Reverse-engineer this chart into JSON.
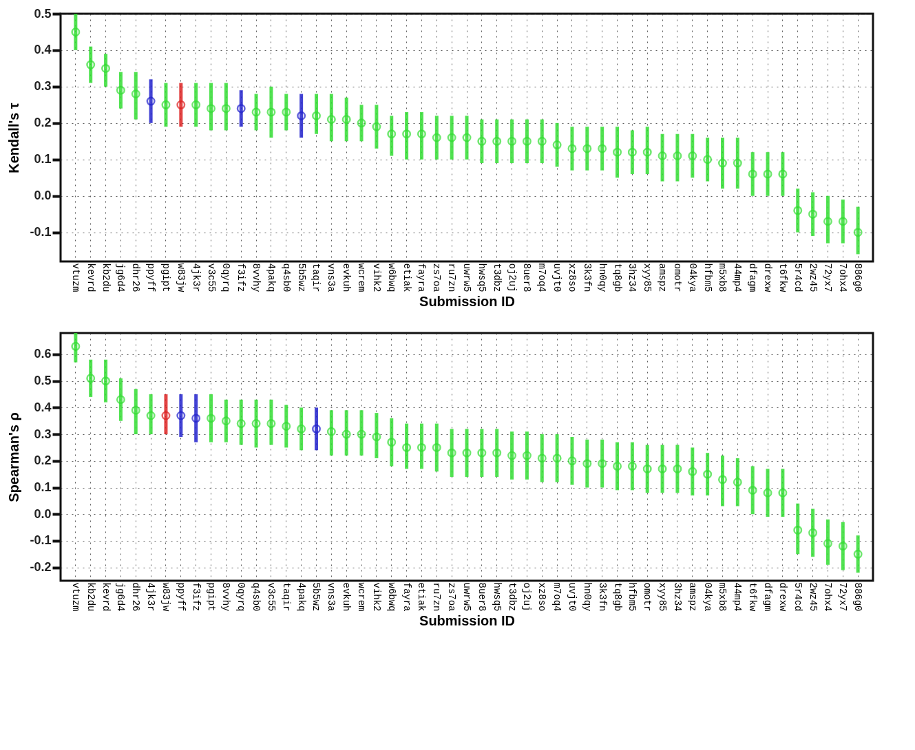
{
  "chart_data": [
    {
      "type": "scatter",
      "xlabel": "Submission ID",
      "ylabel": "Kendall's τ",
      "marker": "circle",
      "grid": true,
      "categories": [
        "vtuzm",
        "kevrd",
        "kb2du",
        "jg6d4",
        "dhr26",
        "ppyff",
        "pgipt",
        "w83jw",
        "4jk3r",
        "v3c55",
        "0qyrq",
        "f3ifz",
        "8vvhy",
        "4pakq",
        "q4sb0",
        "5b5wz",
        "taqir",
        "vns3a",
        "evkuh",
        "wcrem",
        "vihk2",
        "w6bwq",
        "etiak",
        "fayra",
        "zs7oa",
        "ru7zn",
        "uwrw5",
        "hwsq5",
        "t3dbz",
        "oj2uj",
        "8uer8",
        "m7oq4",
        "uvjt0",
        "xz8so",
        "3k3fn",
        "hn0qy",
        "tq8gb",
        "3hz34",
        "xyy85",
        "amspz",
        "omotr",
        "04kya",
        "hfbm5",
        "m5xb8",
        "44mp4",
        "dfagm",
        "drexw",
        "t6fkw",
        "5r4cd",
        "2wz45",
        "72yx7",
        "7ohx4",
        "886g0"
      ],
      "ylim": [
        -0.18,
        0.5
      ],
      "yticks": [
        -0.1,
        {
          "value": 0,
          "label": "0.0"
        },
        0.1,
        0.2,
        0.3,
        0.4,
        0.5
      ],
      "series": [
        {
          "values": [
            0.45,
            0.36,
            0.35,
            0.29,
            0.28,
            0.26,
            0.25,
            0.25,
            0.25,
            0.24,
            0.24,
            0.24,
            0.23,
            0.23,
            0.23,
            0.22,
            0.22,
            0.21,
            0.21,
            0.2,
            0.19,
            0.17,
            0.17,
            0.17,
            0.16,
            0.16,
            0.16,
            0.15,
            0.15,
            0.15,
            0.15,
            0.15,
            0.14,
            0.13,
            0.13,
            0.13,
            0.12,
            0.12,
            0.12,
            0.11,
            0.11,
            0.11,
            0.1,
            0.09,
            0.09,
            0.06,
            0.06,
            0.06,
            -0.04,
            -0.05,
            -0.07,
            -0.07,
            -0.1
          ],
          "errors": [
            [
              0.4,
              0.5
            ],
            [
              0.31,
              0.41
            ],
            [
              0.3,
              0.39
            ],
            [
              0.24,
              0.34
            ],
            [
              0.21,
              0.34
            ],
            [
              0.2,
              0.32
            ],
            [
              0.19,
              0.31
            ],
            [
              0.19,
              0.31
            ],
            [
              0.19,
              0.31
            ],
            [
              0.18,
              0.31
            ],
            [
              0.18,
              0.31
            ],
            [
              0.19,
              0.29
            ],
            [
              0.18,
              0.28
            ],
            [
              0.16,
              0.3
            ],
            [
              0.18,
              0.28
            ],
            [
              0.16,
              0.28
            ],
            [
              0.17,
              0.28
            ],
            [
              0.15,
              0.28
            ],
            [
              0.15,
              0.27
            ],
            [
              0.15,
              0.25
            ],
            [
              0.13,
              0.25
            ],
            [
              0.11,
              0.22
            ],
            [
              0.1,
              0.23
            ],
            [
              0.1,
              0.23
            ],
            [
              0.1,
              0.22
            ],
            [
              0.1,
              0.22
            ],
            [
              0.1,
              0.22
            ],
            [
              0.09,
              0.21
            ],
            [
              0.09,
              0.21
            ],
            [
              0.09,
              0.21
            ],
            [
              0.09,
              0.21
            ],
            [
              0.09,
              0.21
            ],
            [
              0.08,
              0.2
            ],
            [
              0.07,
              0.19
            ],
            [
              0.07,
              0.19
            ],
            [
              0.07,
              0.19
            ],
            [
              0.05,
              0.19
            ],
            [
              0.06,
              0.18
            ],
            [
              0.06,
              0.19
            ],
            [
              0.04,
              0.17
            ],
            [
              0.04,
              0.17
            ],
            [
              0.05,
              0.17
            ],
            [
              0.04,
              0.16
            ],
            [
              0.02,
              0.16
            ],
            [
              0.02,
              0.16
            ],
            [
              0.0,
              0.12
            ],
            [
              0.0,
              0.12
            ],
            [
              0.0,
              0.12
            ],
            [
              -0.1,
              0.02
            ],
            [
              -0.11,
              0.01
            ],
            [
              -0.13,
              0.0
            ],
            [
              -0.13,
              -0.01
            ],
            [
              -0.16,
              -0.03
            ]
          ],
          "colors": [
            "#33dd33",
            "#33dd33",
            "#33dd33",
            "#33dd33",
            "#33dd33",
            "#2222cc",
            "#33dd33",
            "#dd2222",
            "#33dd33",
            "#33dd33",
            "#33dd33",
            "#2222cc",
            "#33dd33",
            "#33dd33",
            "#33dd33",
            "#2222cc",
            "#33dd33",
            "#33dd33",
            "#33dd33",
            "#33dd33",
            "#33dd33",
            "#33dd33",
            "#33dd33",
            "#33dd33",
            "#33dd33",
            "#33dd33",
            "#33dd33",
            "#33dd33",
            "#33dd33",
            "#33dd33",
            "#33dd33",
            "#33dd33",
            "#33dd33",
            "#33dd33",
            "#33dd33",
            "#33dd33",
            "#33dd33",
            "#33dd33",
            "#33dd33",
            "#33dd33",
            "#33dd33",
            "#33dd33",
            "#33dd33",
            "#33dd33",
            "#33dd33",
            "#33dd33",
            "#33dd33",
            "#33dd33",
            "#33dd33",
            "#33dd33",
            "#33dd33",
            "#33dd33",
            "#33dd33"
          ]
        }
      ]
    },
    {
      "type": "scatter",
      "xlabel": "Submission ID",
      "ylabel": "Spearman's ρ",
      "marker": "circle",
      "grid": true,
      "categories": [
        "vtuzm",
        "kb2du",
        "kevrd",
        "jg6d4",
        "dhr26",
        "4jk3r",
        "w83jw",
        "ppyff",
        "f3ifz",
        "pgipt",
        "8vvhy",
        "0qyrq",
        "q4sb0",
        "v3c55",
        "taqir",
        "4pakq",
        "5b5wz",
        "vns3a",
        "evkuh",
        "wcrem",
        "vihk2",
        "w6bwq",
        "fayra",
        "etiak",
        "ru7zn",
        "zs7oa",
        "uwrw5",
        "8uer8",
        "hwsq5",
        "t3dbz",
        "oj2uj",
        "xz8so",
        "m7oq4",
        "uvjt0",
        "hn0qy",
        "3k3fn",
        "tq8gb",
        "hfbm5",
        "omotr",
        "xyy85",
        "3hz34",
        "amspz",
        "04kya",
        "m5xb8",
        "44mp4",
        "t6fkw",
        "dfagm",
        "drexw",
        "5r4cd",
        "2wz45",
        "7ohx4",
        "72yx7",
        "886g0"
      ],
      "ylim": [
        -0.25,
        0.68
      ],
      "yticks": [
        -0.2,
        -0.1,
        {
          "value": 0,
          "label": "0.0"
        },
        0.1,
        0.2,
        0.3,
        0.4,
        0.5,
        0.6
      ],
      "series": [
        {
          "values": [
            0.63,
            0.51,
            0.5,
            0.43,
            0.39,
            0.37,
            0.37,
            0.37,
            0.36,
            0.36,
            0.35,
            0.34,
            0.34,
            0.34,
            0.33,
            0.32,
            0.32,
            0.31,
            0.3,
            0.3,
            0.29,
            0.27,
            0.25,
            0.25,
            0.25,
            0.23,
            0.23,
            0.23,
            0.23,
            0.22,
            0.22,
            0.21,
            0.21,
            0.2,
            0.19,
            0.19,
            0.18,
            0.18,
            0.17,
            0.17,
            0.17,
            0.16,
            0.15,
            0.13,
            0.12,
            0.09,
            0.08,
            0.08,
            -0.06,
            -0.07,
            -0.11,
            -0.12,
            -0.15
          ],
          "errors": [
            [
              0.57,
              0.68
            ],
            [
              0.44,
              0.58
            ],
            [
              0.42,
              0.58
            ],
            [
              0.35,
              0.51
            ],
            [
              0.3,
              0.47
            ],
            [
              0.3,
              0.45
            ],
            [
              0.3,
              0.45
            ],
            [
              0.29,
              0.45
            ],
            [
              0.27,
              0.45
            ],
            [
              0.27,
              0.45
            ],
            [
              0.27,
              0.43
            ],
            [
              0.26,
              0.43
            ],
            [
              0.25,
              0.43
            ],
            [
              0.26,
              0.43
            ],
            [
              0.25,
              0.41
            ],
            [
              0.24,
              0.4
            ],
            [
              0.24,
              0.4
            ],
            [
              0.22,
              0.39
            ],
            [
              0.22,
              0.39
            ],
            [
              0.22,
              0.39
            ],
            [
              0.21,
              0.38
            ],
            [
              0.18,
              0.36
            ],
            [
              0.17,
              0.34
            ],
            [
              0.17,
              0.34
            ],
            [
              0.16,
              0.34
            ],
            [
              0.14,
              0.32
            ],
            [
              0.14,
              0.32
            ],
            [
              0.14,
              0.32
            ],
            [
              0.14,
              0.32
            ],
            [
              0.13,
              0.31
            ],
            [
              0.13,
              0.31
            ],
            [
              0.12,
              0.3
            ],
            [
              0.12,
              0.3
            ],
            [
              0.11,
              0.29
            ],
            [
              0.1,
              0.28
            ],
            [
              0.1,
              0.28
            ],
            [
              0.09,
              0.27
            ],
            [
              0.09,
              0.27
            ],
            [
              0.08,
              0.26
            ],
            [
              0.08,
              0.26
            ],
            [
              0.08,
              0.26
            ],
            [
              0.07,
              0.25
            ],
            [
              0.07,
              0.23
            ],
            [
              0.03,
              0.22
            ],
            [
              0.03,
              0.21
            ],
            [
              0.0,
              0.18
            ],
            [
              -0.01,
              0.17
            ],
            [
              -0.01,
              0.17
            ],
            [
              -0.15,
              0.04
            ],
            [
              -0.16,
              0.02
            ],
            [
              -0.19,
              -0.02
            ],
            [
              -0.21,
              -0.03
            ],
            [
              -0.22,
              -0.08
            ]
          ],
          "colors": [
            "#33dd33",
            "#33dd33",
            "#33dd33",
            "#33dd33",
            "#33dd33",
            "#33dd33",
            "#dd2222",
            "#2222cc",
            "#2222cc",
            "#33dd33",
            "#33dd33",
            "#33dd33",
            "#33dd33",
            "#33dd33",
            "#33dd33",
            "#33dd33",
            "#2222cc",
            "#33dd33",
            "#33dd33",
            "#33dd33",
            "#33dd33",
            "#33dd33",
            "#33dd33",
            "#33dd33",
            "#33dd33",
            "#33dd33",
            "#33dd33",
            "#33dd33",
            "#33dd33",
            "#33dd33",
            "#33dd33",
            "#33dd33",
            "#33dd33",
            "#33dd33",
            "#33dd33",
            "#33dd33",
            "#33dd33",
            "#33dd33",
            "#33dd33",
            "#33dd33",
            "#33dd33",
            "#33dd33",
            "#33dd33",
            "#33dd33",
            "#33dd33",
            "#33dd33",
            "#33dd33",
            "#33dd33",
            "#33dd33",
            "#33dd33",
            "#33dd33",
            "#33dd33",
            "#33dd33"
          ]
        }
      ]
    }
  ]
}
